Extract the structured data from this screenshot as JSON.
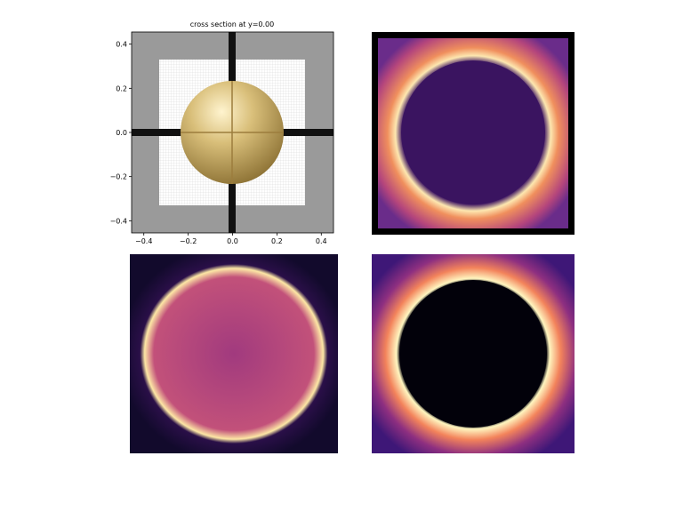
{
  "chart_data": {
    "type": "image",
    "title": "cross section at y=0.00",
    "xlim": [
      -0.455,
      0.455
    ],
    "ylim": [
      -0.455,
      0.455
    ],
    "xticks": [
      {
        "value": -0.4,
        "label": "−0.4"
      },
      {
        "value": -0.2,
        "label": "−0.2"
      },
      {
        "value": 0,
        "label": "0.0"
      },
      0.2,
      0.4
    ],
    "yticks": [
      {
        "value": -0.4,
        "label": "−0.4"
      },
      {
        "value": -0.2,
        "label": "−0.2"
      },
      {
        "value": 0,
        "label": "0.0"
      },
      0.2,
      0.4
    ]
  }
}
